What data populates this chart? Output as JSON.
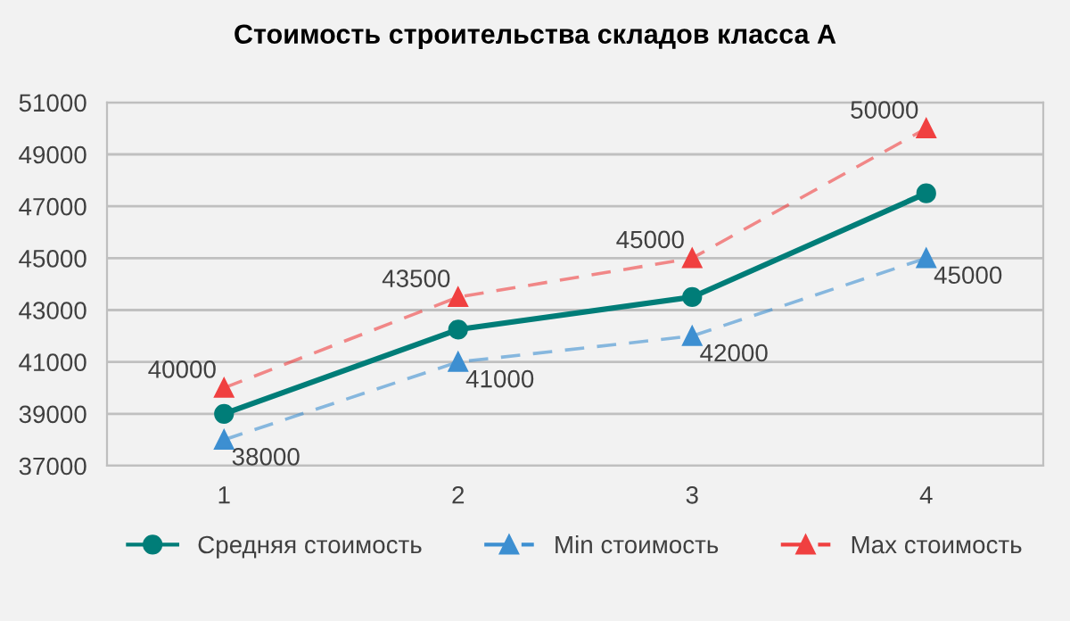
{
  "chart_data": {
    "type": "line",
    "title": "Стоимость строительства складов класса А",
    "categories": [
      "1",
      "2",
      "3",
      "4"
    ],
    "series": [
      {
        "name": "Средняя стоимость",
        "color": "#007d78",
        "values": [
          39000,
          42250,
          43500,
          47500
        ],
        "marker": "circle",
        "line_style": "solid"
      },
      {
        "name": "Min стоимость",
        "color": "#3d8fd1",
        "values": [
          38000,
          41000,
          42000,
          45000
        ],
        "marker": "triangle",
        "line_style": "dashed",
        "value_labels": [
          "38000",
          "41000",
          "42000",
          "45000"
        ]
      },
      {
        "name": "Max стоимость",
        "color": "#f04040",
        "values": [
          40000,
          43500,
          45000,
          50000
        ],
        "marker": "triangle",
        "line_style": "dashed",
        "value_labels": [
          "40000",
          "43500",
          "45000",
          "50000"
        ]
      }
    ],
    "ylim": [
      37000,
      51000
    ],
    "yticks": [
      37000,
      39000,
      41000,
      43000,
      45000,
      47000,
      49000,
      51000
    ],
    "grid": "y",
    "legend": "bottom"
  }
}
